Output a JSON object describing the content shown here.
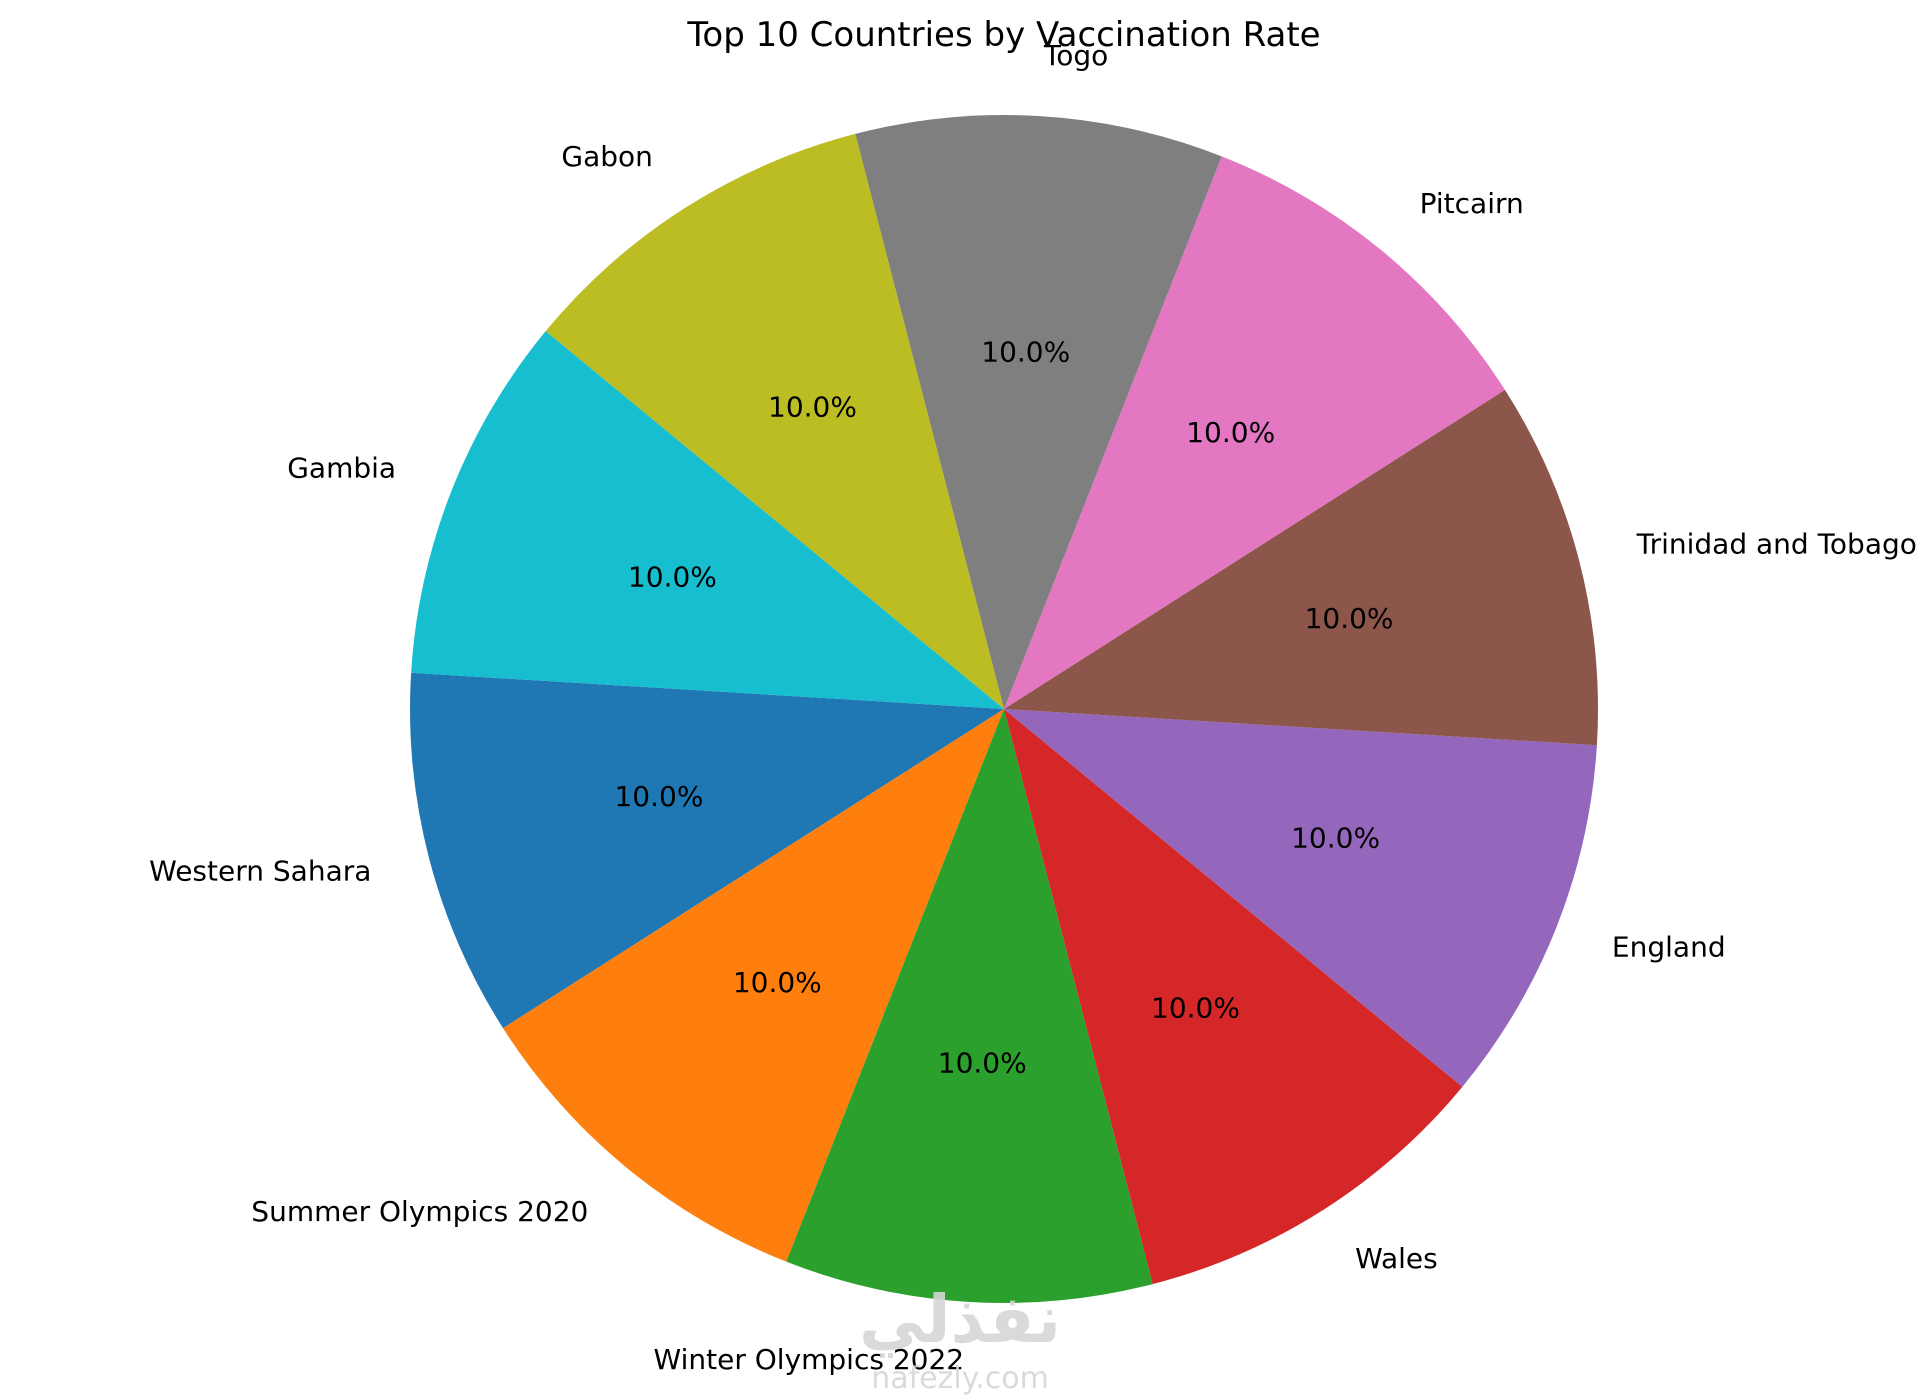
{
  "chart_data": {
    "type": "pie",
    "title": "Top 10 Countries by Vaccination Rate",
    "slices": [
      {
        "label": "Western Sahara",
        "value": 10.0,
        "pct_label": "10.0%",
        "color": "#1f77b4"
      },
      {
        "label": "Summer Olympics 2020",
        "value": 10.0,
        "pct_label": "10.0%",
        "color": "#ff7f0e"
      },
      {
        "label": "Winter Olympics 2022",
        "value": 10.0,
        "pct_label": "10.0%",
        "color": "#2ca02c"
      },
      {
        "label": "Wales",
        "value": 10.0,
        "pct_label": "10.0%",
        "color": "#d62728"
      },
      {
        "label": "England",
        "value": 10.0,
        "pct_label": "10.0%",
        "color": "#9467bd"
      },
      {
        "label": "Trinidad and Tobago",
        "value": 10.0,
        "pct_label": "10.0%",
        "color": "#8c564b"
      },
      {
        "label": "Pitcairn",
        "value": 10.0,
        "pct_label": "10.0%",
        "color": "#e377c2"
      },
      {
        "label": "Togo",
        "value": 10.0,
        "pct_label": "10.0%",
        "color": "#7f7f7f"
      },
      {
        "label": "Gabon",
        "value": 10.0,
        "pct_label": "10.0%",
        "color": "#bcbd22"
      },
      {
        "label": "Gambia",
        "value": 10.0,
        "pct_label": "10.0%",
        "color": "#17becf"
      }
    ],
    "start_angle_deg": 176.5,
    "direction": "counterclockwise",
    "legend": "none"
  },
  "watermark": {
    "arabic": "نفذلي",
    "latin": "nafezly.com"
  }
}
